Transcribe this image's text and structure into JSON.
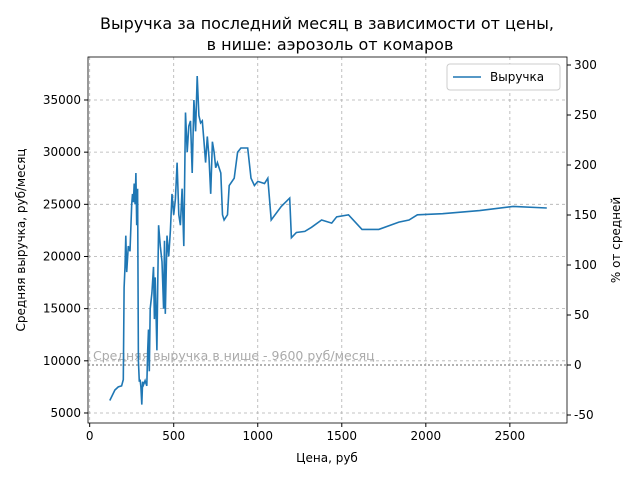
{
  "chart_data": {
    "type": "line",
    "title": "Выручка за последний месяц в зависимости от цены,",
    "subtitle": "в нише: аэрозоль от комаров",
    "xlabel": "Цена, руб",
    "ylabel": "Средняя выручка, руб/месяц",
    "y2label": "% от средней",
    "x": [
      120,
      150,
      170,
      190,
      200,
      205,
      210,
      215,
      220,
      230,
      240,
      250,
      255,
      260,
      265,
      270,
      275,
      280,
      285,
      290,
      295,
      300,
      305,
      310,
      315,
      320,
      330,
      340,
      345,
      350,
      355,
      360,
      370,
      380,
      385,
      390,
      400,
      405,
      410,
      420,
      430,
      440,
      445,
      450,
      460,
      470,
      480,
      490,
      500,
      510,
      520,
      530,
      540,
      550,
      560,
      570,
      580,
      590,
      600,
      610,
      620,
      630,
      640,
      650,
      660,
      670,
      680,
      690,
      700,
      710,
      720,
      730,
      740,
      750,
      760,
      780,
      790,
      800,
      820,
      830,
      860,
      880,
      900,
      940,
      960,
      980,
      1000,
      1040,
      1060,
      1080,
      1140,
      1190,
      1200,
      1230,
      1280,
      1320,
      1380,
      1440,
      1470,
      1540,
      1620,
      1720,
      1840,
      1900,
      1950,
      2100,
      2320,
      2520,
      2720
    ],
    "series": [
      {
        "name": "Выручка",
        "color": "#1f77b4",
        "values": [
          6200,
          7200,
          7500,
          7600,
          8200,
          17000,
          19000,
          22000,
          18500,
          21000,
          20500,
          25000,
          26000,
          25200,
          27000,
          25000,
          28000,
          23000,
          26500,
          10000,
          8000,
          8200,
          7500,
          5800,
          8000,
          7700,
          8100,
          7600,
          11000,
          13000,
          9000,
          15000,
          16500,
          19000,
          14000,
          18000,
          11000,
          17000,
          23000,
          21000,
          19500,
          15000,
          21500,
          14500,
          22000,
          20000,
          22500,
          26000,
          24000,
          25500,
          29000,
          24000,
          23000,
          26500,
          21000,
          33800,
          30000,
          32500,
          33000,
          28000,
          35000,
          32000,
          37300,
          33500,
          32800,
          33000,
          31000,
          29000,
          31500,
          29500,
          26000,
          31000,
          30000,
          28500,
          29000,
          28000,
          24000,
          23500,
          24000,
          26800,
          27500,
          30000,
          30400,
          30400,
          27500,
          26800,
          27200,
          27000,
          27500,
          23500,
          24800,
          25600,
          21800,
          22300,
          22400,
          22800,
          23500,
          23200,
          23800,
          24000,
          22600,
          22600,
          23300,
          23500,
          24000,
          24100,
          24400,
          24800,
          24650
        ]
      }
    ],
    "reference_line": {
      "value": 9600,
      "label": "Средняя выручка в нише - 9600 руб/месяц"
    },
    "xlim": [
      -10,
      2840
    ],
    "xticks": [
      0,
      500,
      1000,
      1500,
      2000,
      2500
    ],
    "ylim": [
      4040,
      39120
    ],
    "yticks": [
      5000,
      10000,
      15000,
      20000,
      25000,
      30000,
      35000
    ],
    "y2lim": [
      -58,
      308
    ],
    "y2ticks": [
      -50,
      0,
      50,
      100,
      150,
      200,
      250,
      300
    ],
    "grid": true,
    "legend": "upper right"
  }
}
